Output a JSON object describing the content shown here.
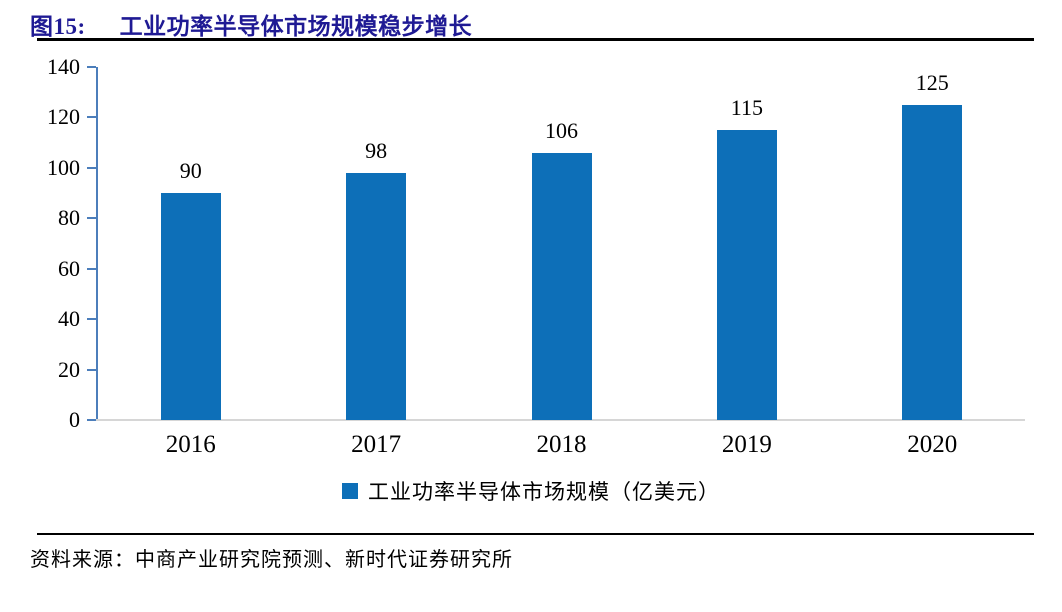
{
  "figure": {
    "label": "图15:",
    "title": "工业功率半导体市场规模稳步增长"
  },
  "legend": {
    "label": "工业功率半导体市场规模（亿美元）",
    "marker_color": "#0d6fb8"
  },
  "source": "资料来源：中商产业研究院预测、新时代证券研究所",
  "colors": {
    "bar": "#0d6fb8",
    "axis": "#4c7ebb",
    "baseline": "#d6d6d6",
    "title": "#1f1a94",
    "rule": "#000000"
  },
  "chart_data": {
    "type": "bar",
    "categories": [
      "2016",
      "2017",
      "2018",
      "2019",
      "2020"
    ],
    "values": [
      90,
      98,
      106,
      115,
      125
    ],
    "title": "工业功率半导体市场规模稳步增长",
    "xlabel": "",
    "ylabel": "",
    "ylim": [
      0,
      140
    ],
    "yticks": [
      0,
      20,
      40,
      60,
      80,
      100,
      120,
      140
    ],
    "grid": false,
    "legend_entries": [
      "工业功率半导体市场规模（亿美元）"
    ],
    "legend_position": "bottom"
  }
}
